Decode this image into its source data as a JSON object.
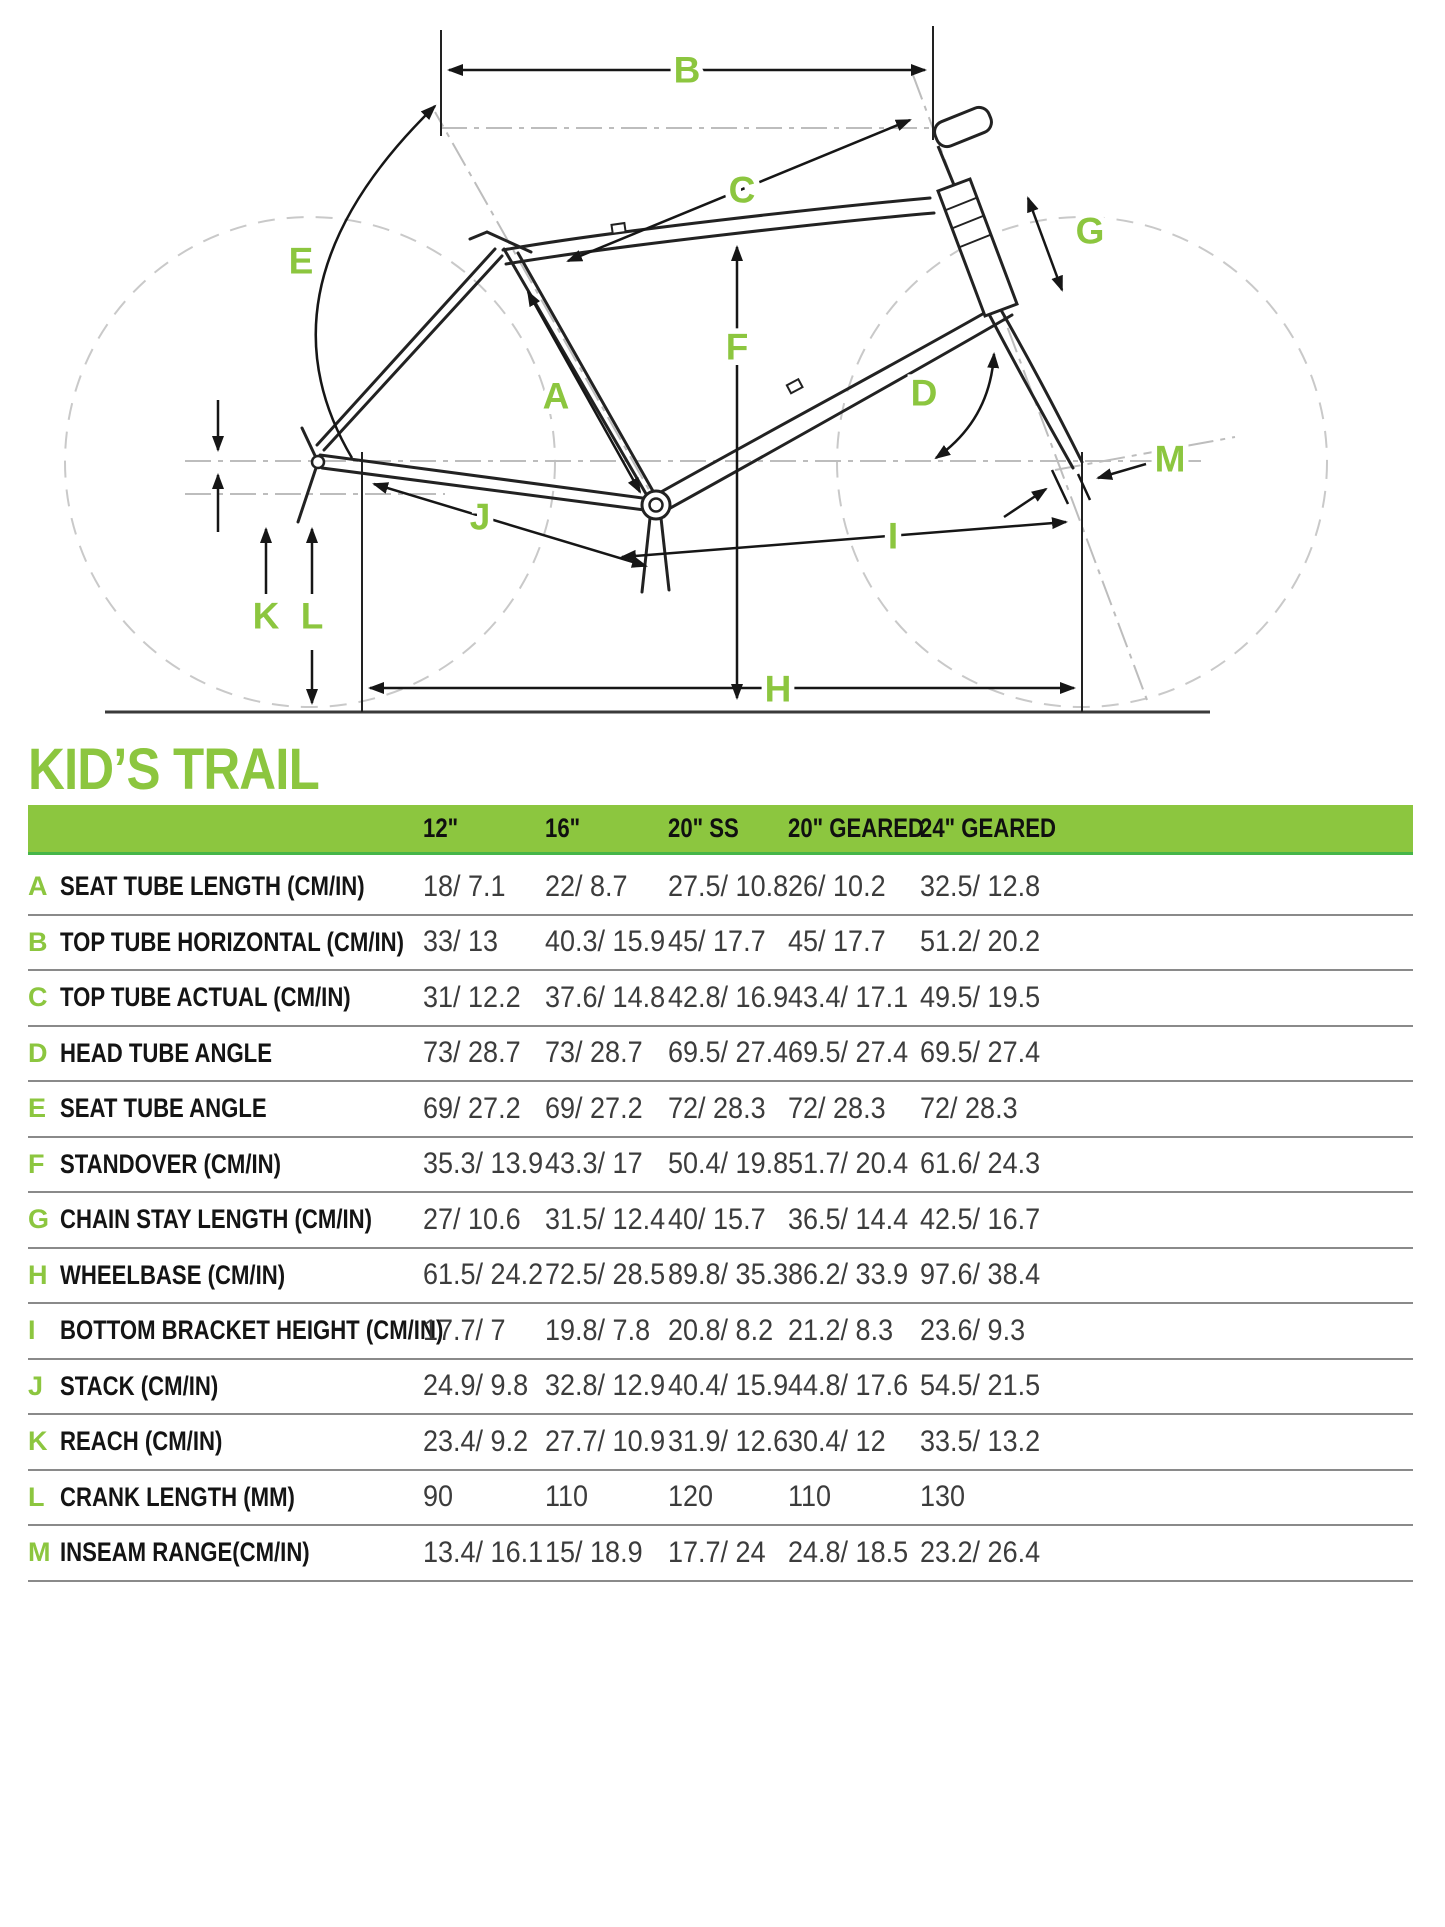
{
  "title": "KID’S TRAIL",
  "accent_color": "#8CC63F",
  "diagram": {
    "labels": [
      "A",
      "B",
      "C",
      "D",
      "E",
      "F",
      "G",
      "H",
      "I",
      "J",
      "K",
      "L",
      "M"
    ]
  },
  "table": {
    "columns": [
      "12\"",
      "16\"",
      "20\" SS",
      "20\" GEARED",
      "24\" GEARED"
    ],
    "rows": [
      {
        "letter": "A",
        "label": "SEAT TUBE LENGTH (CM/IN)",
        "values": [
          "18/ 7.1",
          "22/ 8.7",
          "27.5/ 10.8",
          "26/ 10.2",
          "32.5/ 12.8"
        ]
      },
      {
        "letter": "B",
        "label": "TOP TUBE HORIZONTAL (CM/IN)",
        "values": [
          "33/ 13",
          "40.3/ 15.9",
          "45/ 17.7",
          "45/ 17.7",
          "51.2/ 20.2"
        ]
      },
      {
        "letter": "C",
        "label": "TOP TUBE ACTUAL (CM/IN)",
        "values": [
          "31/ 12.2",
          "37.6/ 14.8",
          "42.8/ 16.9",
          "43.4/ 17.1",
          "49.5/ 19.5"
        ]
      },
      {
        "letter": "D",
        "label": "HEAD TUBE ANGLE",
        "values": [
          "73/ 28.7",
          "73/ 28.7",
          "69.5/ 27.4",
          "69.5/ 27.4",
          "69.5/ 27.4"
        ]
      },
      {
        "letter": "E",
        "label": "SEAT TUBE ANGLE",
        "values": [
          "69/ 27.2",
          "69/ 27.2",
          "72/ 28.3",
          "72/ 28.3",
          "72/ 28.3"
        ]
      },
      {
        "letter": "F",
        "label": "STANDOVER (CM/IN)",
        "values": [
          "35.3/ 13.9",
          "43.3/ 17",
          "50.4/ 19.8",
          "51.7/ 20.4",
          "61.6/ 24.3"
        ]
      },
      {
        "letter": "G",
        "label": "CHAIN STAY LENGTH (CM/IN)",
        "values": [
          "27/ 10.6",
          "31.5/ 12.4",
          "40/ 15.7",
          "36.5/ 14.4",
          "42.5/ 16.7"
        ]
      },
      {
        "letter": "H",
        "label": "WHEELBASE (CM/IN)",
        "values": [
          "61.5/ 24.2",
          "72.5/ 28.5",
          "89.8/ 35.3",
          "86.2/ 33.9",
          "97.6/ 38.4"
        ]
      },
      {
        "letter": "I",
        "label": "BOTTOM BRACKET HEIGHT (CM/IN)",
        "values": [
          "17.7/ 7",
          "19.8/ 7.8",
          "20.8/ 8.2",
          "21.2/ 8.3",
          "23.6/ 9.3"
        ]
      },
      {
        "letter": "J",
        "label": "STACK (CM/IN)",
        "values": [
          "24.9/ 9.8",
          "32.8/ 12.9",
          "40.4/ 15.9",
          "44.8/ 17.6",
          "54.5/ 21.5"
        ]
      },
      {
        "letter": "K",
        "label": "REACH (CM/IN)",
        "values": [
          "23.4/ 9.2",
          "27.7/ 10.9",
          "31.9/ 12.6",
          "30.4/ 12",
          "33.5/ 13.2"
        ]
      },
      {
        "letter": "L",
        "label": "CRANK LENGTH (MM)",
        "values": [
          "90",
          "110",
          "120",
          "110",
          "130"
        ]
      },
      {
        "letter": "M",
        "label": "INSEAM RANGE(CM/IN)",
        "values": [
          "13.4/ 16.1",
          "15/ 18.9",
          "17.7/ 24",
          "24.8/ 18.5",
          "23.2/ 26.4"
        ]
      }
    ]
  }
}
